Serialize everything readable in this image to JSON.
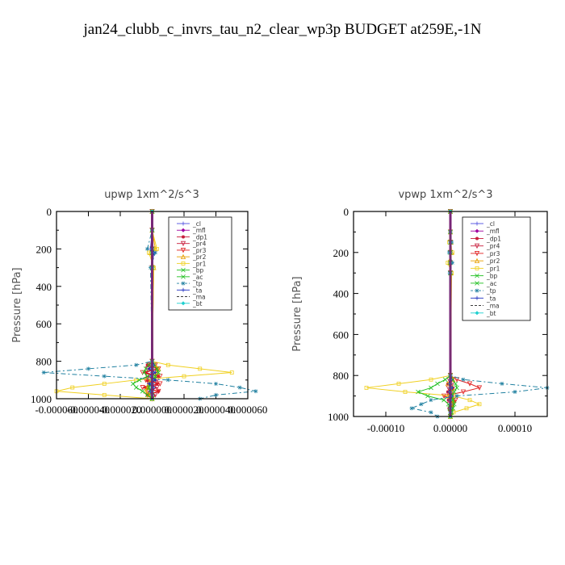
{
  "page_title": "jan24_clubb_c_invrs_tau_n2_clear_wp3p  BUDGET at259E,-1N",
  "legend_entries": [
    "_cl",
    "_mfl",
    "_dp1",
    "_pr4",
    "_pr3",
    "_pr2",
    "_pr1",
    "_bp",
    "_ac",
    "_tp",
    "_ta",
    "_ma",
    "_bt"
  ],
  "chart_data": [
    {
      "type": "line",
      "title": "upwp   1xm^2/s^3",
      "ylabel": "Pressure  [hPa]",
      "xlabel": "",
      "ylim": [
        1000,
        0
      ],
      "xlim": [
        -6e-05,
        6e-05
      ],
      "y_ticks": [
        0,
        200,
        400,
        600,
        800,
        1000
      ],
      "x_tick_labels": [
        "-0.000060",
        "-0.000040",
        "-0.000020",
        "0.000000",
        "0.000020",
        "0.000040",
        "0.000060"
      ],
      "legend_position": "top-right",
      "y": [
        0,
        100,
        200,
        220,
        300,
        800,
        820,
        840,
        860,
        880,
        900,
        920,
        940,
        960,
        980,
        1000
      ],
      "series": [
        {
          "name": "_cl",
          "color": "#5050e0",
          "values": [
            0,
            0,
            0,
            0,
            0,
            0,
            0,
            0,
            0,
            0,
            0,
            0,
            0,
            0,
            0,
            0
          ]
        },
        {
          "name": "_mfl",
          "color": "#a000a0",
          "values": [
            0,
            0,
            0,
            0,
            0,
            0,
            0,
            0,
            0,
            0,
            0,
            0,
            0,
            0,
            0,
            0
          ]
        },
        {
          "name": "_dp1",
          "color": "#c81e3c",
          "values": [
            0,
            0,
            0,
            0,
            0,
            0,
            -3e-06,
            3e-06,
            -4e-06,
            4e-06,
            -3e-06,
            3e-06,
            -4e-06,
            4e-06,
            -3e-06,
            0
          ]
        },
        {
          "name": "_pr4",
          "color": "#c81e3c",
          "values": [
            0,
            0,
            0,
            0,
            0,
            0,
            2e-06,
            -3e-06,
            2e-06,
            -3e-06,
            3e-06,
            -2e-06,
            3e-06,
            -2e-06,
            2e-06,
            0
          ]
        },
        {
          "name": "_pr3",
          "color": "#e02020",
          "values": [
            0,
            0,
            0,
            0,
            0,
            0,
            -2e-06,
            4e-06,
            -6e-06,
            5e-06,
            -4e-06,
            5e-06,
            -6e-06,
            4e-06,
            -3e-06,
            0
          ]
        },
        {
          "name": "_pr2",
          "color": "#e8a000",
          "values": [
            0,
            0,
            2e-06,
            -1e-06,
            1e-06,
            0,
            2e-06,
            4e-06,
            3e-06,
            1e-06,
            -1e-06,
            -2e-06,
            -3e-06,
            -4e-06,
            -2e-06,
            0
          ]
        },
        {
          "name": "_pr1",
          "color": "#f0d020",
          "values": [
            0,
            0,
            3e-06,
            -2e-06,
            1e-06,
            0,
            1e-05,
            3e-05,
            5e-05,
            2e-05,
            -1e-05,
            -3e-05,
            -5e-05,
            -6e-05,
            -3e-05,
            0
          ]
        },
        {
          "name": "_bp",
          "color": "#20c020",
          "values": [
            0,
            0,
            0,
            0,
            0,
            0,
            -2e-06,
            -4e-06,
            -5e-06,
            -3e-06,
            -8e-06,
            -1.2e-05,
            -1e-05,
            -6e-06,
            -3e-06,
            0
          ]
        },
        {
          "name": "_ac",
          "color": "#20c020",
          "values": [
            0,
            0,
            0,
            0,
            0,
            0,
            1e-06,
            3e-06,
            4e-06,
            2e-06,
            1e-06,
            -1e-06,
            -2e-06,
            -1e-06,
            0,
            0
          ]
        },
        {
          "name": "_tp",
          "color": "#2080a0",
          "values": [
            0,
            0,
            -3e-06,
            2e-06,
            -1e-06,
            0,
            -1e-05,
            -4e-05,
            -6.8e-05,
            -3e-05,
            1e-05,
            4e-05,
            5.5e-05,
            6.5e-05,
            4e-05,
            3e-05
          ]
        },
        {
          "name": "_ta",
          "color": "#2030c0",
          "values": [
            0,
            0,
            -1e-06,
            1e-06,
            0,
            0,
            1e-06,
            -2e-06,
            2e-06,
            -1e-06,
            2e-06,
            -2e-06,
            1e-06,
            -1e-06,
            0,
            0
          ]
        },
        {
          "name": "_ma",
          "color": "#202020",
          "values": [
            0,
            0,
            0,
            0,
            0,
            0,
            0,
            0,
            0,
            0,
            0,
            0,
            0,
            0,
            0,
            0
          ]
        },
        {
          "name": "_bt",
          "color": "#20d0d0",
          "values": [
            0,
            0,
            0,
            0,
            0,
            0,
            0,
            0,
            0,
            0,
            0,
            0,
            0,
            0,
            0,
            0
          ]
        }
      ]
    },
    {
      "type": "line",
      "title": "vpwp   1xm^2/s^3",
      "ylabel": "Pressure  [hPa]",
      "xlabel": "",
      "ylim": [
        1000,
        0
      ],
      "xlim": [
        -0.00015,
        0.00015
      ],
      "y_ticks": [
        0,
        200,
        400,
        600,
        800,
        1000
      ],
      "x_tick_labels": [
        "-0.00010",
        "0.00000",
        "0.00010"
      ],
      "x_tick_values": [
        -0.0001,
        0,
        0.0001
      ],
      "legend_position": "top-right",
      "y": [
        0,
        100,
        150,
        200,
        250,
        300,
        800,
        820,
        840,
        860,
        880,
        900,
        920,
        940,
        960,
        980,
        1000
      ],
      "series": [
        {
          "name": "_cl",
          "color": "#5050e0",
          "values": [
            0,
            0,
            0,
            0,
            0,
            0,
            0,
            0,
            0,
            0,
            0,
            0,
            0,
            0,
            0,
            0,
            0
          ]
        },
        {
          "name": "_mfl",
          "color": "#a000a0",
          "values": [
            0,
            0,
            0,
            0,
            0,
            0,
            0,
            0,
            0,
            0,
            0,
            0,
            0,
            0,
            0,
            0,
            0
          ]
        },
        {
          "name": "_dp1",
          "color": "#c81e3c",
          "values": [
            0,
            0,
            0,
            0,
            0,
            0,
            0,
            3e-06,
            -4e-06,
            4e-06,
            -4e-06,
            3e-06,
            -3e-06,
            3e-06,
            -2e-06,
            1e-06,
            0
          ]
        },
        {
          "name": "_pr4",
          "color": "#c81e3c",
          "values": [
            0,
            0,
            0,
            0,
            0,
            0,
            0,
            -2e-06,
            3e-06,
            -3e-06,
            2e-06,
            -2e-06,
            2e-06,
            -2e-06,
            1e-06,
            0,
            0
          ]
        },
        {
          "name": "_pr3",
          "color": "#e02020",
          "values": [
            0,
            0,
            0,
            0,
            0,
            0,
            0,
            1e-05,
            3e-05,
            4.5e-05,
            2e-05,
            -1e-05,
            8e-06,
            4e-06,
            2e-06,
            0,
            0
          ]
        },
        {
          "name": "_pr2",
          "color": "#e8a000",
          "values": [
            0,
            0,
            1e-06,
            2e-06,
            -1e-06,
            1e-06,
            0,
            4e-06,
            -4e-06,
            3e-06,
            2e-06,
            -3e-06,
            4e-06,
            3e-06,
            2e-06,
            1e-06,
            0
          ]
        },
        {
          "name": "_pr1",
          "color": "#f0d020",
          "values": [
            0,
            0,
            -2e-06,
            3e-06,
            -4e-06,
            2e-06,
            0,
            -3e-05,
            -8e-05,
            -0.00013,
            -7e-05,
            5e-06,
            3e-05,
            4.5e-05,
            2.5e-05,
            5e-06,
            0
          ]
        },
        {
          "name": "_bp",
          "color": "#20c020",
          "values": [
            0,
            0,
            0,
            0,
            0,
            0,
            0,
            -8e-06,
            -2e-05,
            -3e-05,
            -5e-05,
            -3.5e-05,
            -1e-05,
            -3e-06,
            -1e-06,
            0,
            0
          ]
        },
        {
          "name": "_ac",
          "color": "#20c020",
          "values": [
            0,
            0,
            0,
            0,
            0,
            0,
            0,
            3e-06,
            8e-06,
            1e-05,
            6e-06,
            2e-06,
            4e-06,
            6e-06,
            4e-06,
            2e-06,
            0
          ]
        },
        {
          "name": "_tp",
          "color": "#2080a0",
          "values": [
            0,
            0,
            2e-06,
            -2e-06,
            3e-06,
            -1e-06,
            0,
            2e-05,
            8e-05,
            0.00015,
            0.0001,
            1e-05,
            -3e-05,
            -4.5e-05,
            -6e-05,
            -3e-05,
            -2e-05
          ]
        },
        {
          "name": "_ta",
          "color": "#2030c0",
          "values": [
            0,
            0,
            0,
            0,
            0,
            0,
            0,
            2e-06,
            -2e-06,
            3e-06,
            -2e-06,
            2e-06,
            -1e-06,
            1e-06,
            0,
            0,
            0
          ]
        },
        {
          "name": "_ma",
          "color": "#202020",
          "values": [
            0,
            0,
            0,
            0,
            0,
            0,
            0,
            0,
            0,
            0,
            0,
            0,
            0,
            0,
            0,
            0,
            0
          ]
        },
        {
          "name": "_bt",
          "color": "#20d0d0",
          "values": [
            0,
            0,
            0,
            0,
            0,
            0,
            0,
            0,
            0,
            0,
            0,
            0,
            0,
            0,
            0,
            0,
            0
          ]
        }
      ]
    }
  ]
}
